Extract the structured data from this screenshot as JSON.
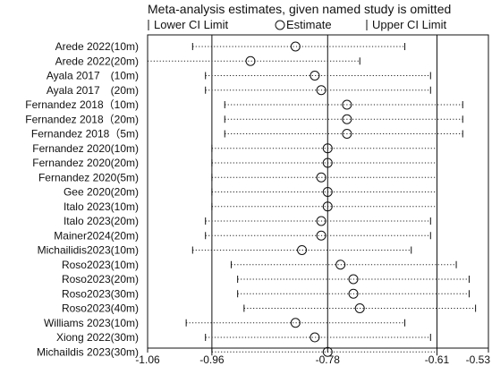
{
  "chart_data": {
    "type": "forest",
    "title": "Meta-analysis estimates, given named study is omitted",
    "legend": {
      "lower": "Lower CI Limit",
      "estimate": "Estimate",
      "upper": "Upper CI Limit"
    },
    "x_ticks": [
      {
        "value": -1.06,
        "label": "-1.06"
      },
      {
        "value": -0.96,
        "label": "-0.96"
      },
      {
        "value": -0.78,
        "label": "-0.78"
      },
      {
        "value": -0.61,
        "label": "-0.61"
      },
      {
        "value": -0.53,
        "label": "-0.53"
      }
    ],
    "xlim": [
      -1.06,
      -0.53
    ],
    "reference_lines": [
      -0.96,
      -0.78,
      -0.61
    ],
    "studies": [
      {
        "label": "Arede 2022(10m)",
        "lower": -0.99,
        "estimate": -0.83,
        "upper": -0.66
      },
      {
        "label": "Arede 2022(20m)",
        "lower": -1.06,
        "estimate": -0.9,
        "upper": -0.73
      },
      {
        "label": "Ayala 2017　(10m)",
        "lower": -0.97,
        "estimate": -0.8,
        "upper": -0.62
      },
      {
        "label": "Ayala 2017　(20m)",
        "lower": -0.97,
        "estimate": -0.79,
        "upper": -0.62
      },
      {
        "label": "Fernandez 2018（10m)",
        "lower": -0.94,
        "estimate": -0.75,
        "upper": -0.57
      },
      {
        "label": "Fernandez 2018（20m)",
        "lower": -0.94,
        "estimate": -0.75,
        "upper": -0.57
      },
      {
        "label": "Fernandez 2018（5m)",
        "lower": -0.94,
        "estimate": -0.75,
        "upper": -0.57
      },
      {
        "label": "Fernandez 2020(10m)",
        "lower": -0.96,
        "estimate": -0.78,
        "upper": -0.61
      },
      {
        "label": "Fernandez 2020(20m)",
        "lower": -0.96,
        "estimate": -0.78,
        "upper": -0.61
      },
      {
        "label": "Fernandez 2020(5m)",
        "lower": -0.96,
        "estimate": -0.79,
        "upper": -0.61
      },
      {
        "label": "Gee 2020(20m)",
        "lower": -0.96,
        "estimate": -0.78,
        "upper": -0.61
      },
      {
        "label": "Italo 2023(10m)",
        "lower": -0.96,
        "estimate": -0.78,
        "upper": -0.61
      },
      {
        "label": "Italo 2023(20m)",
        "lower": -0.97,
        "estimate": -0.79,
        "upper": -0.62
      },
      {
        "label": "Mainer2024(20m)",
        "lower": -0.97,
        "estimate": -0.79,
        "upper": -0.62
      },
      {
        "label": "Michailidis2023(10m)",
        "lower": -0.99,
        "estimate": -0.82,
        "upper": -0.65
      },
      {
        "label": "Roso2023(10m)",
        "lower": -0.93,
        "estimate": -0.76,
        "upper": -0.58
      },
      {
        "label": "Roso2023(20m)",
        "lower": -0.92,
        "estimate": -0.74,
        "upper": -0.56
      },
      {
        "label": "Roso2023(30m)",
        "lower": -0.92,
        "estimate": -0.74,
        "upper": -0.56
      },
      {
        "label": "Roso2023(40m)",
        "lower": -0.91,
        "estimate": -0.73,
        "upper": -0.55
      },
      {
        "label": "Williams 2023(10m)",
        "lower": -1.0,
        "estimate": -0.83,
        "upper": -0.66
      },
      {
        "label": "Xiong 2022(30m)",
        "lower": -0.97,
        "estimate": -0.8,
        "upper": -0.62
      },
      {
        "label": "Michaildis 2023(30m)",
        "lower": -0.96,
        "estimate": -0.78,
        "upper": -0.61
      }
    ]
  }
}
